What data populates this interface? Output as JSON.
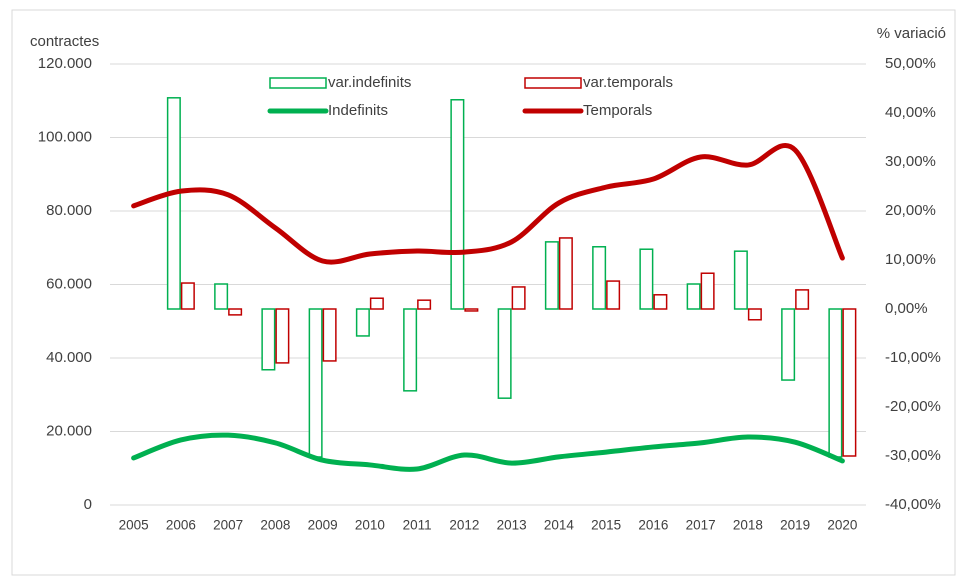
{
  "chart_data": {
    "type": "combo",
    "y_label": "contractes",
    "y2_label": "% variació",
    "categories": [
      "2005",
      "2006",
      "2007",
      "2008",
      "2009",
      "2010",
      "2011",
      "2012",
      "2013",
      "2014",
      "2015",
      "2016",
      "2017",
      "2018",
      "2019",
      "2020"
    ],
    "series": [
      {
        "name": "var.indefinits",
        "type": "bar",
        "axis": "y2",
        "color": "#00b050",
        "values": [
          null,
          43.1,
          5.1,
          -12.4,
          -30.2,
          -5.5,
          -16.7,
          42.7,
          -18.2,
          13.7,
          12.7,
          12.2,
          5.1,
          11.8,
          -14.5,
          -30.2
        ]
      },
      {
        "name": "var.temporals",
        "type": "bar",
        "axis": "y2",
        "color": "#c00000",
        "values": [
          null,
          5.3,
          -1.2,
          -11.0,
          -10.6,
          2.2,
          1.8,
          -0.4,
          4.5,
          14.5,
          5.7,
          2.9,
          7.3,
          -2.2,
          3.9,
          -30.0
        ]
      },
      {
        "name": "Indefinits",
        "type": "line",
        "axis": "y",
        "color": "#00b050",
        "values": [
          12800,
          17700,
          19000,
          16900,
          12200,
          10900,
          9800,
          13600,
          11400,
          13100,
          14400,
          15800,
          16900,
          18500,
          17100,
          12000
        ]
      },
      {
        "name": "Temporals",
        "type": "line",
        "axis": "y",
        "color": "#c00000",
        "values": [
          81400,
          85400,
          84400,
          75400,
          66400,
          68300,
          69100,
          68800,
          71600,
          82200,
          86500,
          88700,
          94700,
          92500,
          96600,
          67200
        ]
      }
    ],
    "ylim": [
      0,
      120000
    ],
    "yticks": [
      0,
      {
        "value": 20000,
        "label": "20.000"
      },
      {
        "value": 40000,
        "label": "40.000"
      },
      {
        "value": 60000,
        "label": "60.000"
      },
      {
        "value": 80000,
        "label": "80.000"
      },
      {
        "value": 100000,
        "label": "100.000"
      },
      {
        "value": 120000,
        "label": "120.000"
      }
    ],
    "y2lim": [
      -40,
      50
    ],
    "y2ticks": [
      {
        "value": -40,
        "label": "-40,00%"
      },
      {
        "value": -30,
        "label": "-30,00%"
      },
      {
        "value": -20,
        "label": "-20,00%"
      },
      {
        "value": -10,
        "label": "-10,00%"
      },
      {
        "value": 0,
        "label": "0,00%"
      },
      {
        "value": 10,
        "label": "10,00%"
      },
      {
        "value": 20,
        "label": "20,00%"
      },
      {
        "value": 30,
        "label": "30,00%"
      },
      {
        "value": 40,
        "label": "40,00%"
      },
      {
        "value": 50,
        "label": "50,00%"
      }
    ],
    "grid": true
  }
}
